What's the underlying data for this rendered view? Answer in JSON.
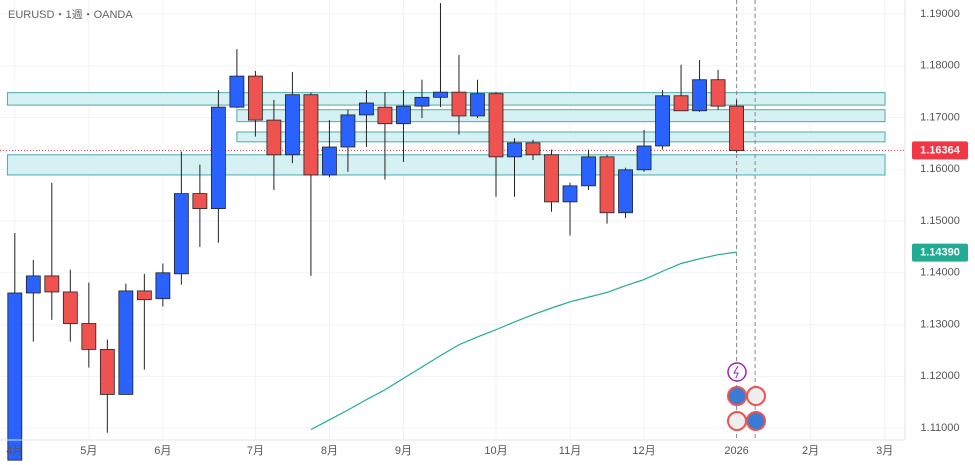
{
  "chart_data": {
    "type": "candlestick",
    "title": "EURUSD・1週・OANDA",
    "open": [
      1.1038,
      1.1361,
      1.1394,
      1.1363,
      1.1302,
      1.1252,
      1.1165,
      1.1365,
      1.135,
      1.1398,
      1.1553,
      1.1524,
      1.172,
      1.178,
      1.1695,
      1.1628,
      1.1744,
      1.1589,
      1.1643,
      1.1705,
      1.172,
      1.1688,
      1.1722,
      1.1739,
      1.1749,
      1.1703,
      1.1746,
      1.1624,
      1.1651,
      1.1628,
      1.1537,
      1.1568,
      1.1624,
      1.1516,
      1.1599,
      1.1645,
      1.1742,
      1.1713,
      1.1773,
      1.1722
    ],
    "high": [
      1.1477,
      1.1425,
      1.1574,
      1.1406,
      1.1381,
      1.1271,
      1.1379,
      1.1398,
      1.1418,
      1.1634,
      1.1609,
      1.1753,
      1.1832,
      1.179,
      1.1734,
      1.1788,
      1.1748,
      1.1695,
      1.1715,
      1.1753,
      1.1749,
      1.1753,
      1.1773,
      1.1921,
      1.1821,
      1.1773,
      1.1749,
      1.166,
      1.1657,
      1.1638,
      1.1574,
      1.1638,
      1.1628,
      1.1603,
      1.1676,
      1.1753,
      1.1802,
      1.1811,
      1.1792,
      1.1734
    ],
    "low": [
      1.1038,
      1.1267,
      1.1309,
      1.1267,
      1.1217,
      1.1091,
      1.1165,
      1.1213,
      1.1335,
      1.1377,
      1.145,
      1.1458,
      1.1718,
      1.1663,
      1.156,
      1.1612,
      1.1394,
      1.1585,
      1.1595,
      1.1643,
      1.158,
      1.1614,
      1.1699,
      1.172,
      1.1667,
      1.1699,
      1.1547,
      1.1547,
      1.1618,
      1.1518,
      1.1472,
      1.156,
      1.1495,
      1.1506,
      1.1595,
      1.1638,
      1.1713,
      1.1711,
      1.1715,
      1.1632
    ],
    "close": [
      1.1361,
      1.1394,
      1.1363,
      1.1302,
      1.1252,
      1.1165,
      1.1365,
      1.1348,
      1.14,
      1.1553,
      1.1524,
      1.172,
      1.178,
      1.1695,
      1.1628,
      1.1744,
      1.1589,
      1.1643,
      1.1705,
      1.1728,
      1.1688,
      1.1722,
      1.1739,
      1.1749,
      1.1703,
      1.1746,
      1.1624,
      1.1651,
      1.1628,
      1.1537,
      1.1568,
      1.1624,
      1.1516,
      1.1599,
      1.1645,
      1.1742,
      1.1713,
      1.1773,
      1.1722,
      1.1636
    ],
    "up_color": "#2962ff",
    "down_color": "#ef5350",
    "ma": {
      "color": "#22ab94",
      "values": [
        null,
        null,
        null,
        null,
        null,
        null,
        null,
        null,
        null,
        null,
        null,
        null,
        null,
        null,
        null,
        null,
        1.1097,
        1.1116,
        1.1135,
        1.1155,
        1.1174,
        1.1196,
        1.1218,
        1.124,
        1.1261,
        1.1276,
        1.129,
        1.1305,
        1.1319,
        1.1332,
        1.1344,
        1.1353,
        1.1362,
        1.1375,
        1.1387,
        1.1403,
        1.1418,
        1.1427,
        1.1435,
        1.144
      ]
    },
    "zones": [
      {
        "start": -0.4,
        "low": 1.1724,
        "high": 1.1748
      },
      {
        "start": 12,
        "low": 1.1692,
        "high": 1.1715
      },
      {
        "start": 12,
        "low": 1.1653,
        "high": 1.1672
      },
      {
        "start": -0.4,
        "low": 1.1589,
        "high": 1.1628
      }
    ],
    "vlines": [
      39,
      40
    ],
    "last_price": {
      "value": 1.16364,
      "label": "1.16364",
      "color": "#f23645"
    },
    "ma_price": {
      "value": 1.1439,
      "label": "1.14390"
    },
    "xlim": [
      -0.8,
      48.1
    ],
    "ylim": [
      1.1077,
      1.1927
    ],
    "xticks": [
      {
        "value": 0,
        "label": "4月"
      },
      {
        "value": 4,
        "label": "5月"
      },
      {
        "value": 8,
        "label": "6月"
      },
      {
        "value": 13,
        "label": "7月"
      },
      {
        "value": 17,
        "label": "8月"
      },
      {
        "value": 21,
        "label": "9月"
      },
      {
        "value": 26,
        "label": "10月"
      },
      {
        "value": 30,
        "label": "11月"
      },
      {
        "value": 34,
        "label": "12月"
      },
      {
        "value": 39,
        "label": "2026"
      },
      {
        "value": 43,
        "label": "2月"
      },
      {
        "value": 47,
        "label": "3月"
      }
    ],
    "yticks": [
      {
        "value": 1.11,
        "label": "1.11000"
      },
      {
        "value": 1.12,
        "label": "1.12000"
      },
      {
        "value": 1.13,
        "label": "1.13000"
      },
      {
        "value": 1.14,
        "label": "1.14000"
      },
      {
        "value": 1.15,
        "label": "1.15000"
      },
      {
        "value": 1.16,
        "label": "1.16000"
      },
      {
        "value": 1.17,
        "label": "1.17000"
      },
      {
        "value": 1.18,
        "label": "1.18000"
      },
      {
        "value": 1.19,
        "label": "1.19000"
      }
    ]
  }
}
